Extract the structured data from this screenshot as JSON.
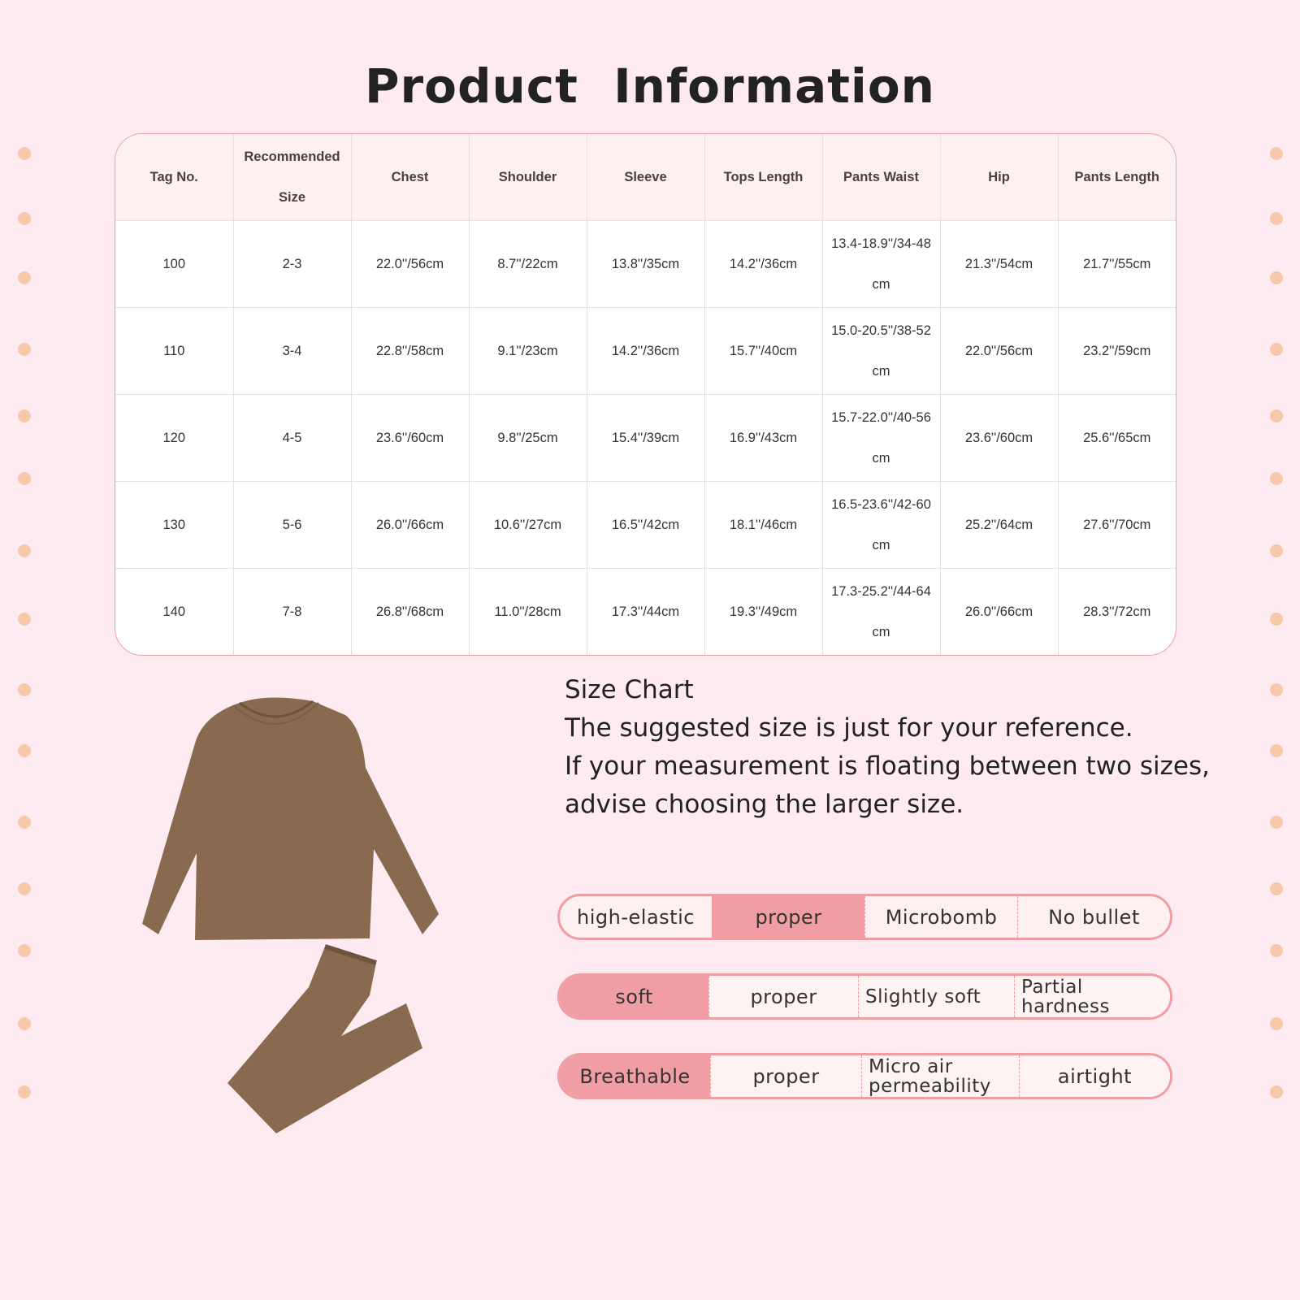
{
  "title": "Product  Information",
  "table": {
    "headers": [
      "Tag No.",
      "Recommended Size",
      "Chest",
      "Shoulder",
      "Sleeve",
      "Tops Length",
      "Pants Waist",
      "Hip",
      "Pants Length"
    ],
    "rows": [
      [
        "100",
        "2-3",
        "22.0''/56cm",
        "8.7''/22cm",
        "13.8''/35cm",
        "14.2''/36cm",
        "13.4-18.9''/34-48 cm",
        "21.3''/54cm",
        "21.7''/55cm"
      ],
      [
        "110",
        "3-4",
        "22.8''/58cm",
        "9.1''/23cm",
        "14.2''/36cm",
        "15.7''/40cm",
        "15.0-20.5''/38-52 cm",
        "22.0''/56cm",
        "23.2''/59cm"
      ],
      [
        "120",
        "4-5",
        "23.6''/60cm",
        "9.8''/25cm",
        "15.4''/39cm",
        "16.9''/43cm",
        "15.7-22.0''/40-56 cm",
        "23.6''/60cm",
        "25.6''/65cm"
      ],
      [
        "130",
        "5-6",
        "26.0''/66cm",
        "10.6''/27cm",
        "16.5''/42cm",
        "18.1''/46cm",
        "16.5-23.6''/42-60 cm",
        "25.2''/64cm",
        "27.6''/70cm"
      ],
      [
        "140",
        "7-8",
        "26.8''/68cm",
        "11.0''/28cm",
        "17.3''/44cm",
        "19.3''/49cm",
        "17.3-25.2''/44-64 cm",
        "26.0''/66cm",
        "28.3''/72cm"
      ]
    ]
  },
  "note": {
    "heading": "Size Chart",
    "lines": [
      "The suggested size is just for your reference.",
      "If your measurement is floating between two sizes,",
      "advise choosing the larger size."
    ]
  },
  "features": [
    {
      "cells": [
        "high-elastic",
        "proper",
        "Microbomb",
        "No bullet"
      ],
      "selected": 1
    },
    {
      "cells": [
        "soft",
        "proper",
        "Slightly soft",
        "Partial hardness"
      ],
      "selected": 0
    },
    {
      "cells": [
        "Breathable",
        "proper",
        "Micro air permeability",
        "airtight"
      ],
      "selected": 0
    }
  ],
  "colors": {
    "background": "#fdebf1",
    "accent": "#f09ea3",
    "garment": "#8a6a4f",
    "dots": "#f8c8ab"
  }
}
